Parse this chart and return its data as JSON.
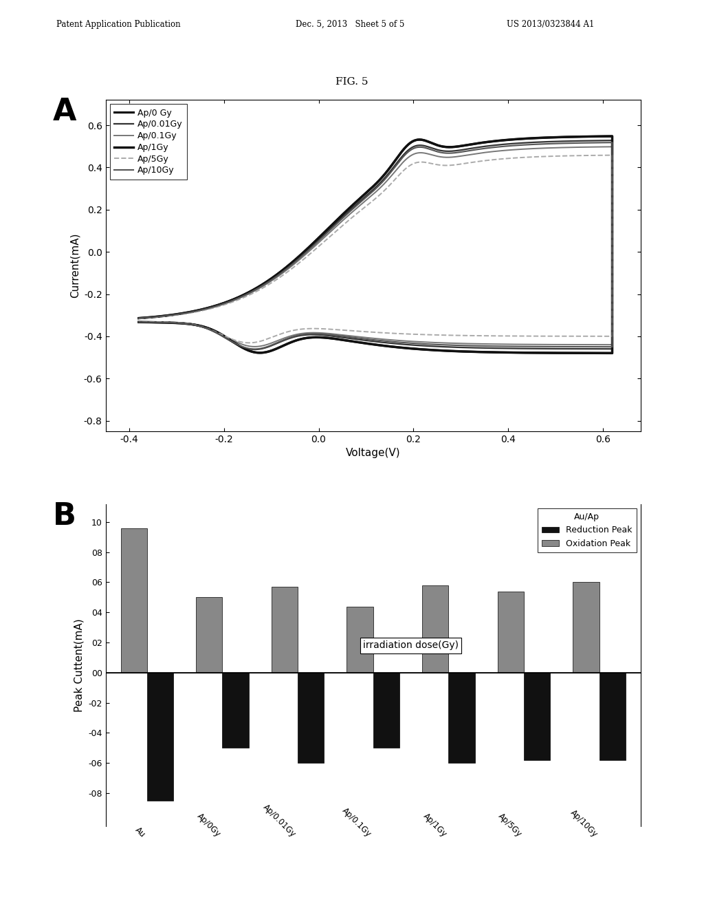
{
  "fig_title": "FIG. 5",
  "header_left": "Patent Application Publication",
  "header_mid": "Dec. 5, 2013   Sheet 5 of 5",
  "header_right": "US 2013/0323844 A1",
  "panel_A_label": "A",
  "panel_B_label": "B",
  "cv_xlabel": "Voltage(V)",
  "cv_ylabel": "Current(mA)",
  "cv_xlim": [
    -0.45,
    0.68
  ],
  "cv_ylim": [
    -0.85,
    0.72
  ],
  "cv_xticks": [
    -0.4,
    -0.2,
    0.0,
    0.2,
    0.4,
    0.6
  ],
  "cv_yticks": [
    -0.8,
    -0.6,
    -0.4,
    -0.2,
    0.0,
    0.2,
    0.4,
    0.6
  ],
  "legend_labels": [
    "Ap/0 Gy",
    "Ap/0.01Gy",
    "Ap/0.1Gy",
    "Ap/1Gy",
    "Ap/5Gy",
    "Ap/10Gy"
  ],
  "legend_colors": [
    "#000000",
    "#333333",
    "#777777",
    "#111111",
    "#aaaaaa",
    "#555555"
  ],
  "legend_styles": [
    "solid",
    "solid",
    "solid",
    "solid",
    "dashed",
    "solid"
  ],
  "legend_widths": [
    2.2,
    1.6,
    1.4,
    2.5,
    1.4,
    1.5
  ],
  "bar_categories": [
    "Au",
    "Ap/0Gy",
    "Ap/0.01Gy",
    "Ap/0.1Gy",
    "Ap/1Gy",
    "Ap/5Gy",
    "Ap/10Gy"
  ],
  "bar_oxidation": [
    0.96,
    0.5,
    0.57,
    0.44,
    0.58,
    0.54,
    0.6
  ],
  "bar_reduction": [
    -0.85,
    -0.5,
    -0.6,
    -0.5,
    -0.6,
    -0.58,
    -0.58
  ],
  "bar_ox_color": "#888888",
  "bar_red_color": "#111111",
  "bar_ylabel": "Peak Cuttent(mA)",
  "bar_annotation": "irradiation dose(Gy)",
  "bar_ytick_vals": [
    -0.8,
    -0.6,
    -0.4,
    -0.2,
    0.0,
    0.2,
    0.4,
    0.6,
    0.8,
    1.0
  ],
  "bar_ytick_labels": [
    "-08",
    "-06",
    "-04",
    "-02",
    "00",
    "02",
    "04",
    "06",
    "08",
    "10"
  ],
  "legend_title": "Au/Ap",
  "background_color": "#ffffff"
}
